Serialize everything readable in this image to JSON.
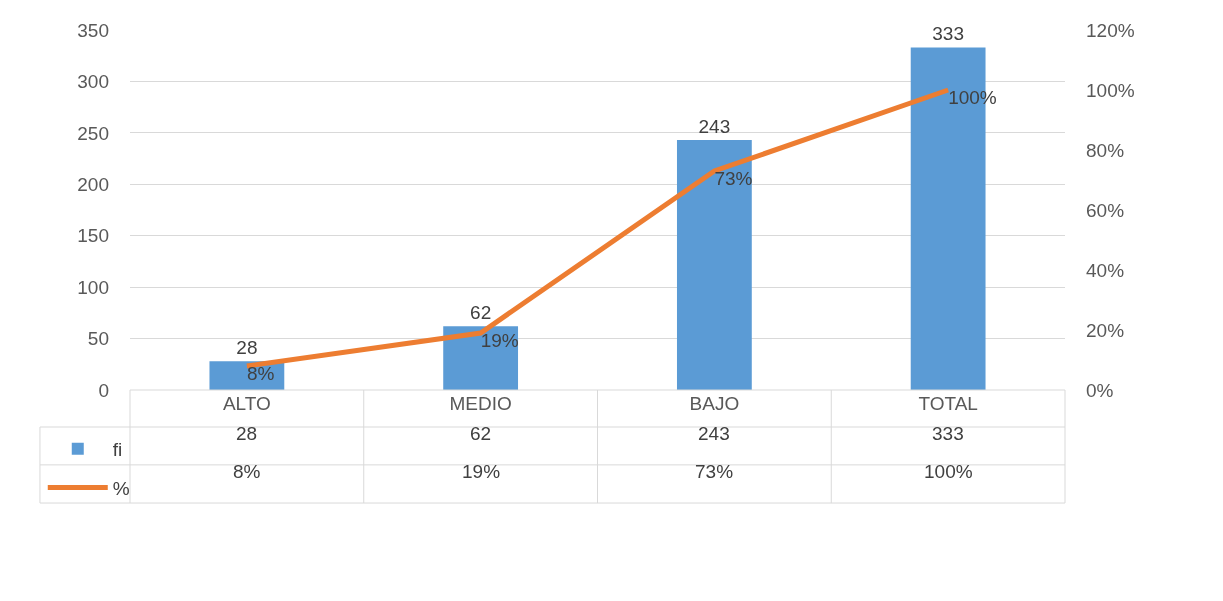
{
  "chart_data": {
    "type": "bar",
    "categories": [
      "ALTO",
      "MEDIO",
      "BAJO",
      "TOTAL"
    ],
    "series": [
      {
        "name": "fi",
        "color": "#5b9bd5",
        "values": [
          28,
          62,
          243,
          333
        ],
        "value_labels": [
          "28",
          "62",
          "243",
          "333"
        ]
      },
      {
        "name": "%",
        "type": "line",
        "axis": "y2",
        "color": "#ed7d31",
        "values": [
          8,
          19,
          73,
          100
        ],
        "value_labels": [
          "8%",
          "19%",
          "73%",
          "100%"
        ]
      }
    ],
    "ylim": [
      0,
      350
    ],
    "yticks": [
      0,
      50,
      100,
      150,
      200,
      250,
      300,
      350
    ],
    "y2lim": [
      0,
      120
    ],
    "y2ticks": [
      {
        "value": 0,
        "label": "0%"
      },
      {
        "value": 20,
        "label": "20%"
      },
      {
        "value": 40,
        "label": "40%"
      },
      {
        "value": 60,
        "label": "60%"
      },
      {
        "value": 80,
        "label": "80%"
      },
      {
        "value": 100,
        "label": "100%"
      },
      {
        "value": 120,
        "label": "120%"
      }
    ],
    "grid": "y",
    "legend": "bottom left",
    "data_labels": true,
    "marker": "none",
    "line_style": "solid"
  }
}
